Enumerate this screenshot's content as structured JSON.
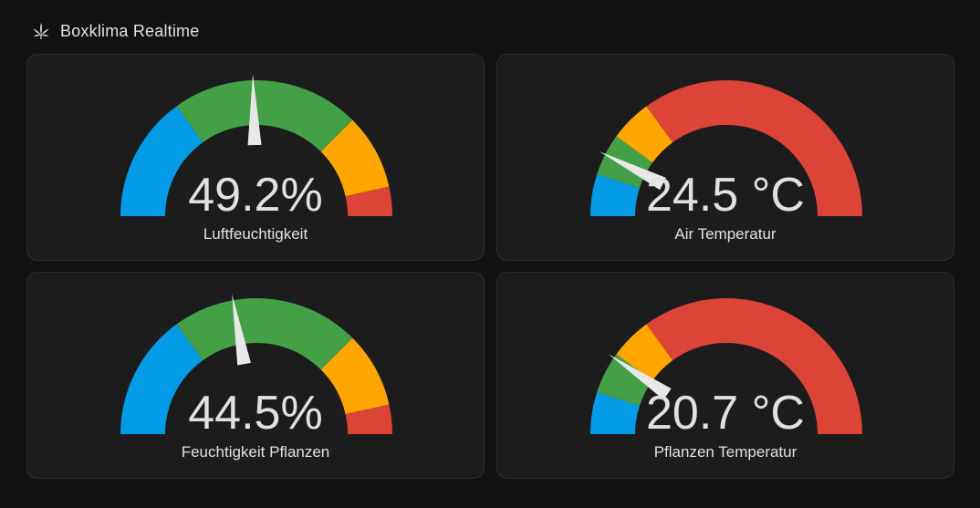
{
  "header": {
    "title": "Boxklima Realtime",
    "icon": "cannabis-leaf-icon"
  },
  "colors": {
    "background": "#111111",
    "card": "#1c1c1c",
    "blue": "#039be5",
    "green": "#43a047",
    "orange": "#ffa600",
    "red": "#db4437",
    "needle": "#e8e8e8"
  },
  "gauges": [
    {
      "id": "luftfeuchtigkeit",
      "value_text": "49.2%",
      "value": 49.2,
      "label": "Luftfeuchtigkeit",
      "min": 0,
      "max": 100,
      "segments": [
        {
          "from": 0,
          "to": 30,
          "color": "#039be5"
        },
        {
          "from": 30,
          "to": 75,
          "color": "#43a047"
        },
        {
          "from": 75,
          "to": 93,
          "color": "#ffa600"
        },
        {
          "from": 93,
          "to": 100,
          "color": "#db4437"
        }
      ]
    },
    {
      "id": "air-temperatur",
      "value_text": "24.5 °C",
      "value": 24.5,
      "label": "Air Temperatur",
      "min": 20,
      "max": 50,
      "segments": [
        {
          "from": 20,
          "to": 23,
          "color": "#039be5"
        },
        {
          "from": 23,
          "to": 26,
          "color": "#43a047"
        },
        {
          "from": 26,
          "to": 29,
          "color": "#ffa600"
        },
        {
          "from": 29,
          "to": 50,
          "color": "#db4437"
        }
      ]
    },
    {
      "id": "feuchtigkeit-pflanzen",
      "value_text": "44.5%",
      "value": 44.5,
      "label": "Feuchtigkeit Pflanzen",
      "min": 0,
      "max": 100,
      "segments": [
        {
          "from": 0,
          "to": 30,
          "color": "#039be5"
        },
        {
          "from": 30,
          "to": 75,
          "color": "#43a047"
        },
        {
          "from": 75,
          "to": 93,
          "color": "#ffa600"
        },
        {
          "from": 93,
          "to": 100,
          "color": "#db4437"
        }
      ]
    },
    {
      "id": "pflanzen-temperatur",
      "value_text": "20.7 °C",
      "value": 20.7,
      "label": "Pflanzen Temperatur",
      "min": 15,
      "max": 45,
      "segments": [
        {
          "from": 15,
          "to": 18,
          "color": "#039be5"
        },
        {
          "from": 18,
          "to": 21,
          "color": "#43a047"
        },
        {
          "from": 21,
          "to": 24,
          "color": "#ffa600"
        },
        {
          "from": 24,
          "to": 45,
          "color": "#db4437"
        }
      ]
    }
  ]
}
